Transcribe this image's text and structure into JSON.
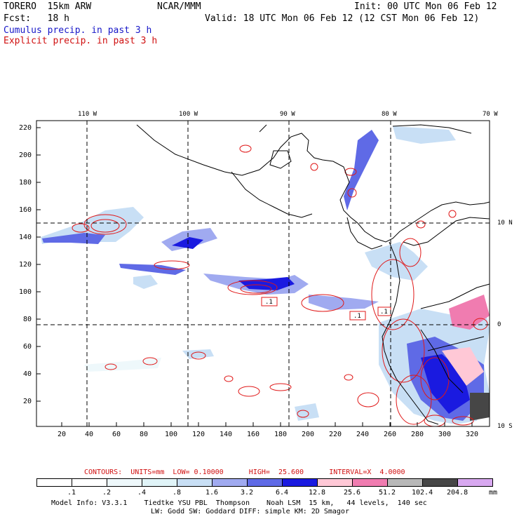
{
  "header": {
    "model": "TORERO  15km ARW",
    "org": "NCAR/MMM",
    "init": "Init: 00 UTC Mon 06 Feb 12",
    "fcst": "Fcst:   18 h",
    "valid": "Valid: 18 UTC Mon 06 Feb 12 (12 CST Mon 06 Feb 12)",
    "legend_cumulus": "Cumulus precip. in past 3 h",
    "legend_explicit": "Explicit precip. in past 3 h"
  },
  "map": {
    "lon_labels": [
      "110 W",
      "100 W",
      "90 W",
      "80 W",
      "70 W"
    ],
    "lat_labels": [
      "10 N",
      "0",
      "10 S"
    ],
    "y_ticks": [
      "220",
      "200",
      "180",
      "160",
      "140",
      "120",
      "100",
      "80",
      "60",
      "40",
      "20"
    ],
    "x_ticks": [
      "20",
      "40",
      "60",
      "80",
      "100",
      "120",
      "140",
      "160",
      "180",
      "200",
      "220",
      "240",
      "260",
      "280",
      "300",
      "320"
    ],
    "region_labels": [
      ".1",
      ".1",
      ".1"
    ]
  },
  "contours_line": "CONTOURS:  UNITS=mm  LOW= 0.10000      HIGH=  25.600      INTERVAL=X  4.0000",
  "colorbar": {
    "levels": [
      ".1",
      ".2",
      ".4",
      ".8",
      "1.6",
      "3.2",
      "6.4",
      "12.8",
      "25.6",
      "51.2",
      "102.4",
      "204.8"
    ],
    "unit": "mm",
    "colors": [
      "#ffffff",
      "#ffffff",
      "#eef8fb",
      "#e0f4f8",
      "#c8dff5",
      "#a0aaf0",
      "#5f6ae6",
      "#1a1ae0",
      "#ffc8d6",
      "#f07cb0",
      "#b8b8b8",
      "#464646",
      "#d8a8f0"
    ]
  },
  "footer": {
    "line1": "Model Info: V3.3.1    Tiedtke YSU PBL  Thompson    Noah LSM  15 km,   44 levels,  140 sec",
    "line2": "LW: Godd SW: Goddard DIFF: simple KM: 2D Smagor"
  }
}
